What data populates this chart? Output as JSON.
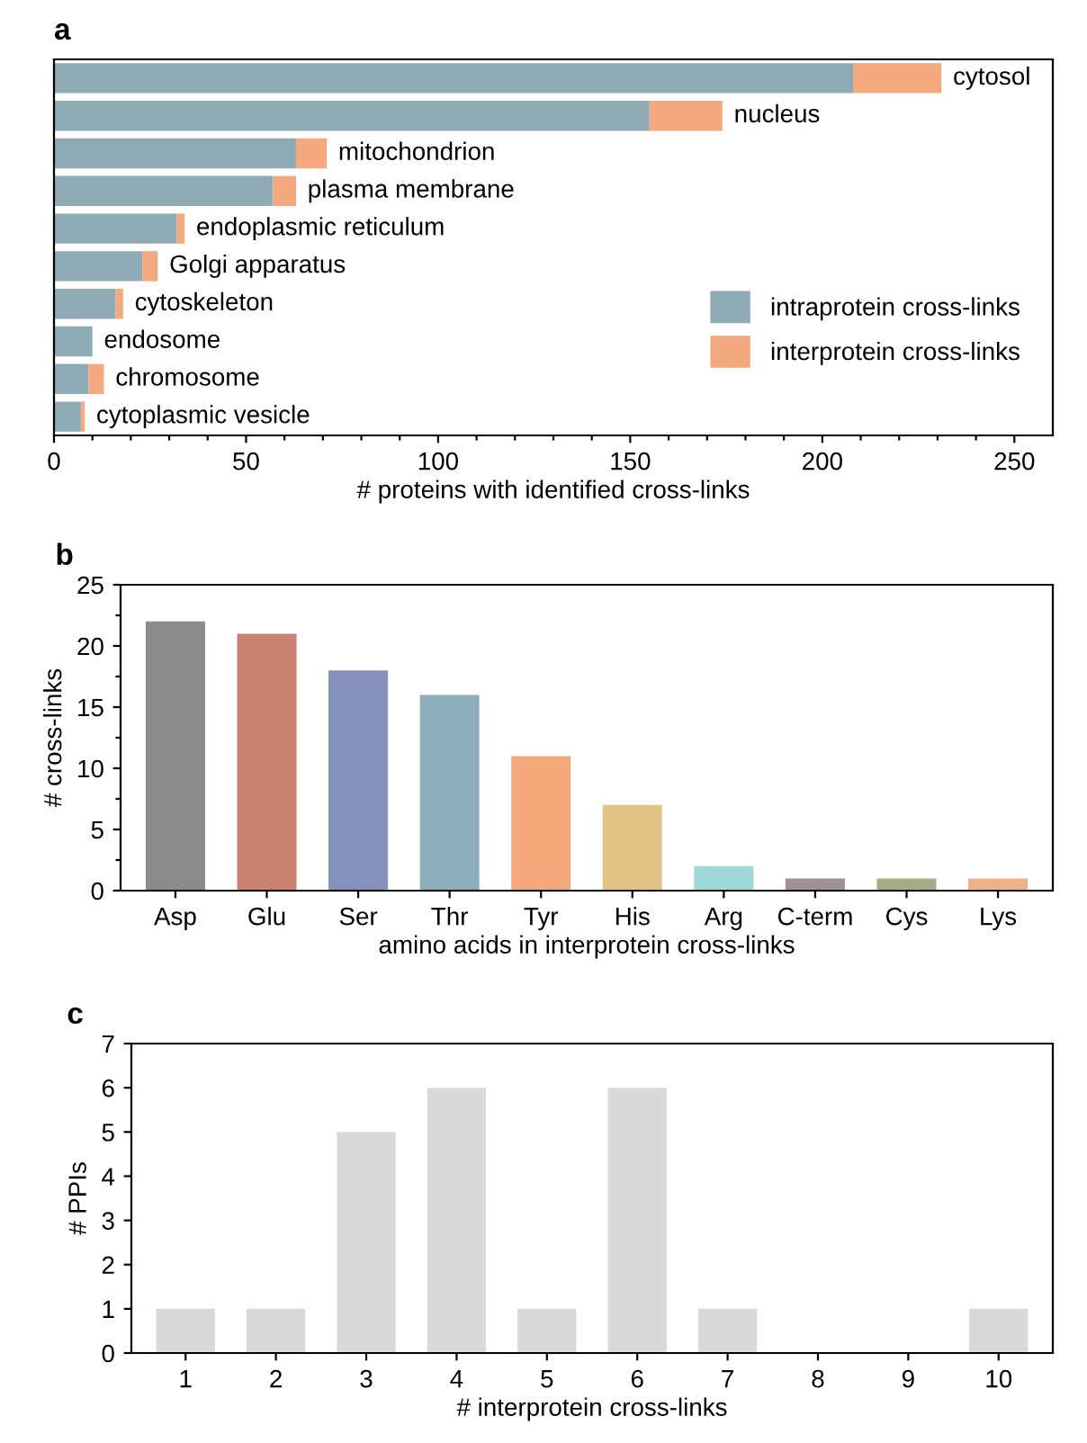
{
  "chart_data": [
    {
      "type": "bar",
      "title": "a",
      "orientation": "horizontal",
      "stacked": true,
      "categories": [
        "cytosol",
        "nucleus",
        "mitochondrion",
        "plasma membrane",
        "endoplasmic reticulum",
        "Golgi apparatus",
        "cytoskeleton",
        "endosome",
        "chromosome",
        "cytoplasmic vesicle"
      ],
      "series": [
        {
          "name": "intraprotein cross-links",
          "color": "#8fabb6",
          "values": [
            208,
            155,
            63,
            57,
            32,
            23,
            16,
            10,
            9,
            7
          ]
        },
        {
          "name": "interprotein cross-links",
          "color": "#f4aa7e",
          "values": [
            23,
            19,
            8,
            6,
            2,
            4,
            2,
            0,
            4,
            1
          ]
        }
      ],
      "xlabel": "# proteins with identified cross-links",
      "xlim": [
        0,
        260
      ],
      "xticks": [
        0,
        {
          "value": 10,
          "label": null
        },
        {
          "value": 20,
          "label": null
        },
        {
          "value": 30,
          "label": null
        },
        {
          "value": 40,
          "label": null
        },
        50,
        {
          "value": 60,
          "label": null
        },
        {
          "value": 70,
          "label": null
        },
        {
          "value": 80,
          "label": null
        },
        {
          "value": 90,
          "label": null
        },
        100,
        {
          "value": 110,
          "label": null
        },
        {
          "value": 120,
          "label": null
        },
        {
          "value": 130,
          "label": null
        },
        {
          "value": 140,
          "label": null
        },
        150,
        {
          "value": 160,
          "label": null
        },
        {
          "value": 170,
          "label": null
        },
        {
          "value": 180,
          "label": null
        },
        {
          "value": 190,
          "label": null
        },
        200,
        {
          "value": 210,
          "label": null
        },
        {
          "value": 220,
          "label": null
        },
        {
          "value": 230,
          "label": null
        },
        {
          "value": 240,
          "label": null
        },
        250
      ],
      "tick_labels": "x",
      "legend": "bottom right",
      "grid": false
    },
    {
      "type": "bar",
      "title": "b",
      "categories": [
        "Asp",
        "Glu",
        "Ser",
        "Thr",
        "Tyr",
        "His",
        "Arg",
        "C-term",
        "Cys",
        "Lys"
      ],
      "values": [
        22,
        21,
        18,
        16,
        11,
        7,
        2,
        1,
        1,
        1
      ],
      "colors": [
        "#8c8c8c",
        "#c98170",
        "#8590bb",
        "#8eaebb",
        "#f4a97c",
        "#e1c384",
        "#9fd8d8",
        "#a09098",
        "#a8ab87",
        "#f0b088"
      ],
      "xlabel": "amino acids in interprotein cross-links",
      "ylabel": "# cross-links",
      "ylim": [
        0,
        25
      ],
      "yticks": [
        0,
        {
          "value": 2.5,
          "label": null
        },
        5,
        {
          "value": 7.5,
          "label": null
        },
        10,
        {
          "value": 12.5,
          "label": null
        },
        15,
        {
          "value": 17.5,
          "label": null
        },
        20,
        {
          "value": 22.5,
          "label": null
        },
        25
      ],
      "grid": false
    },
    {
      "type": "bar",
      "title": "c",
      "categories": [
        "1",
        "2",
        "3",
        "4",
        "5",
        "6",
        "7",
        "8",
        "9",
        "10"
      ],
      "values": [
        1,
        1,
        5,
        6,
        1,
        6,
        1,
        0,
        0,
        1
      ],
      "color": "#d9d9d9",
      "xlabel": "# interprotein cross-links",
      "ylabel": "# PPIs",
      "ylim": [
        0,
        7
      ],
      "yticks": [
        0,
        1,
        2,
        3,
        4,
        5,
        6,
        7
      ],
      "grid": false
    }
  ]
}
